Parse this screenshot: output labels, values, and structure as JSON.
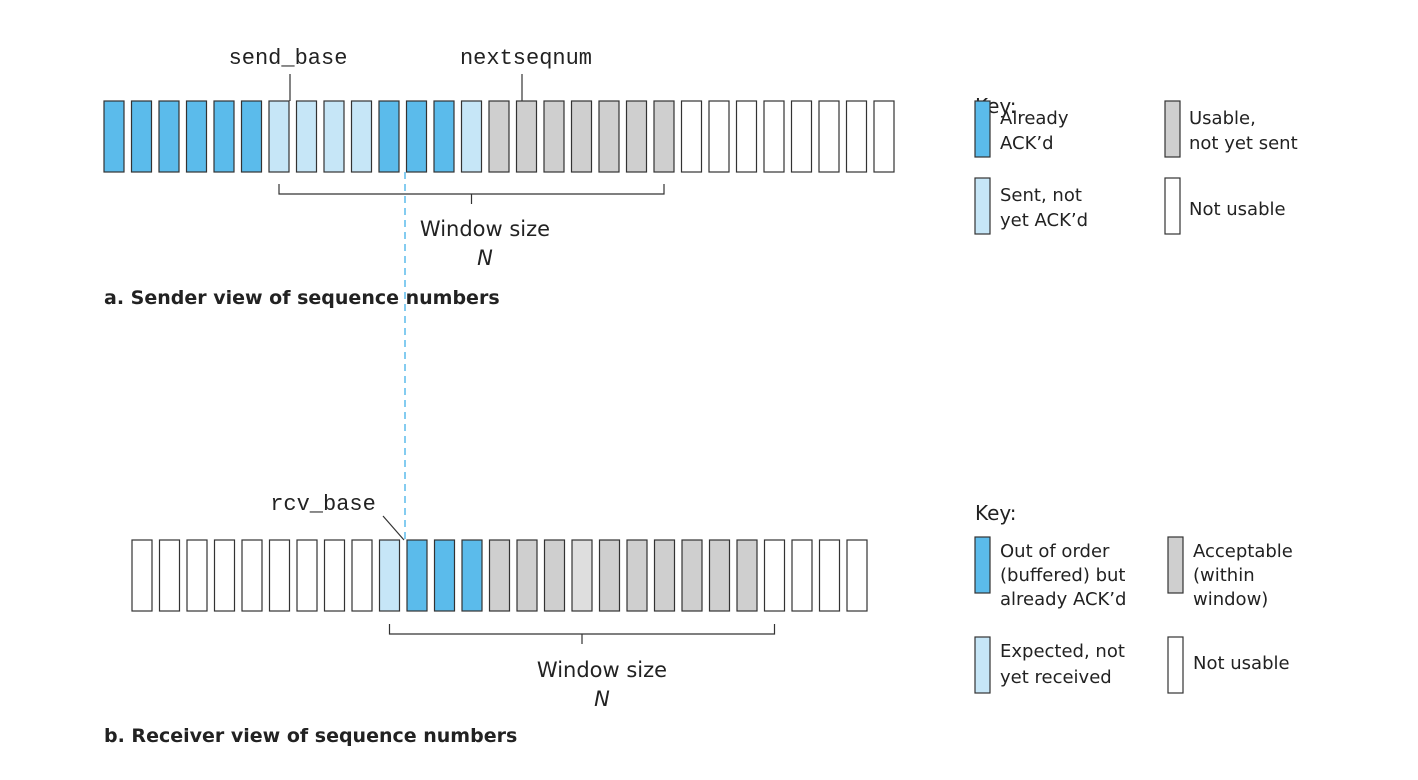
{
  "colors": {
    "acked": "#5bbbeb",
    "sent_not_acked": "#c6e6f7",
    "usable": "#cfcfcf",
    "usable_light": "#dedede",
    "not_usable": "#ffffff",
    "outline": "#333333",
    "dash": "#5bbbeb"
  },
  "sender": {
    "send_base_label": "send_base",
    "nextseqnum_label": "nextseqnum",
    "window_label": "Window size",
    "window_var": "N",
    "caption": "a. Sender view of sequence numbers",
    "cells": [
      "acked",
      "acked",
      "acked",
      "acked",
      "acked",
      "acked",
      "sent",
      "sent",
      "sent",
      "sent",
      "acked",
      "acked",
      "acked",
      "sent",
      "usable",
      "usable",
      "usable",
      "usable",
      "usable",
      "usable",
      "usable",
      "empty",
      "empty",
      "empty",
      "empty",
      "empty",
      "empty",
      "empty",
      "empty"
    ],
    "window_start": 6,
    "window_end": 20,
    "send_base_index": 6,
    "nextseqnum_index": 14,
    "key": {
      "title": "Key:",
      "items": [
        {
          "type": "acked",
          "label1": "Already",
          "label2": "ACK’d"
        },
        {
          "type": "usable",
          "label1": "Usable,",
          "label2": "not yet sent"
        },
        {
          "type": "sent",
          "label1": "Sent, not",
          "label2": "yet ACK’d"
        },
        {
          "type": "empty",
          "label1": "Not usable",
          "label2": ""
        }
      ]
    }
  },
  "receiver": {
    "rcv_base_label": "rcv_base",
    "window_label": "Window size",
    "window_var": "N",
    "caption": "b. Receiver view of sequence numbers",
    "cells": [
      "empty",
      "empty",
      "empty",
      "empty",
      "empty",
      "empty",
      "empty",
      "empty",
      "empty",
      "sent",
      "acked",
      "acked",
      "acked",
      "usable",
      "usable",
      "usable",
      "usable_light",
      "usable",
      "usable",
      "usable",
      "usable",
      "usable",
      "usable",
      "empty",
      "empty",
      "empty",
      "empty"
    ],
    "window_start": 9,
    "window_end": 23,
    "rcv_base_index": 9,
    "key": {
      "title": "Key:",
      "items": [
        {
          "type": "acked",
          "label1": "Out of order",
          "label2": "(buffered) but",
          "label3": "already ACK’d"
        },
        {
          "type": "usable",
          "label1": "Acceptable",
          "label2": "(within",
          "label3": "window)"
        },
        {
          "type": "sent",
          "label1": "Expected, not",
          "label2": "yet received",
          "label3": ""
        },
        {
          "type": "empty",
          "label1": "Not usable",
          "label2": "",
          "label3": ""
        }
      ]
    }
  }
}
